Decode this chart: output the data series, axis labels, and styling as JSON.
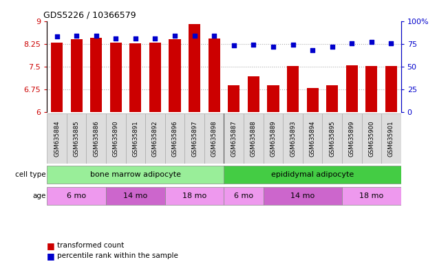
{
  "title": "GDS5226 / 10366579",
  "samples": [
    "GSM635884",
    "GSM635885",
    "GSM635886",
    "GSM635890",
    "GSM635891",
    "GSM635892",
    "GSM635896",
    "GSM635897",
    "GSM635898",
    "GSM635887",
    "GSM635888",
    "GSM635889",
    "GSM635893",
    "GSM635894",
    "GSM635895",
    "GSM635899",
    "GSM635900",
    "GSM635901"
  ],
  "bar_values": [
    8.3,
    8.4,
    8.45,
    8.3,
    8.27,
    8.3,
    8.4,
    8.9,
    8.42,
    6.88,
    7.18,
    6.88,
    7.52,
    6.8,
    6.88,
    7.55,
    7.52,
    7.52
  ],
  "dot_values": [
    83,
    84,
    84,
    81,
    81,
    81,
    84,
    84,
    84,
    73,
    74,
    72,
    74,
    68,
    72,
    76,
    77,
    76
  ],
  "ylim_left": [
    6,
    9
  ],
  "ylim_right": [
    0,
    100
  ],
  "yticks_left": [
    6,
    6.75,
    7.5,
    8.25,
    9
  ],
  "ytick_labels_left": [
    "6",
    "6.75",
    "7.5",
    "8.25",
    "9"
  ],
  "yticks_right": [
    0,
    25,
    50,
    75,
    100
  ],
  "ytick_labels_right": [
    "0",
    "25",
    "50",
    "75",
    "100%"
  ],
  "bar_color": "#cc0000",
  "dot_color": "#0000cc",
  "cell_type_groups": [
    {
      "label": "bone marrow adipocyte",
      "start": 0,
      "end": 9,
      "color": "#99ee99"
    },
    {
      "label": "epididymal adipocyte",
      "start": 9,
      "end": 18,
      "color": "#44cc44"
    }
  ],
  "age_groups": [
    {
      "label": "6 mo",
      "start": 0,
      "end": 3,
      "color": "#ee99ee"
    },
    {
      "label": "14 mo",
      "start": 3,
      "end": 6,
      "color": "#cc66cc"
    },
    {
      "label": "18 mo",
      "start": 6,
      "end": 9,
      "color": "#ee99ee"
    },
    {
      "label": "6 mo",
      "start": 9,
      "end": 11,
      "color": "#ee99ee"
    },
    {
      "label": "14 mo",
      "start": 11,
      "end": 15,
      "color": "#cc66cc"
    },
    {
      "label": "18 mo",
      "start": 15,
      "end": 18,
      "color": "#ee99ee"
    }
  ],
  "legend_items": [
    {
      "label": "transformed count",
      "color": "#cc0000"
    },
    {
      "label": "percentile rank within the sample",
      "color": "#0000cc"
    }
  ],
  "bar_width": 0.6,
  "background_color": "#ffffff",
  "grid_color": "#888888"
}
